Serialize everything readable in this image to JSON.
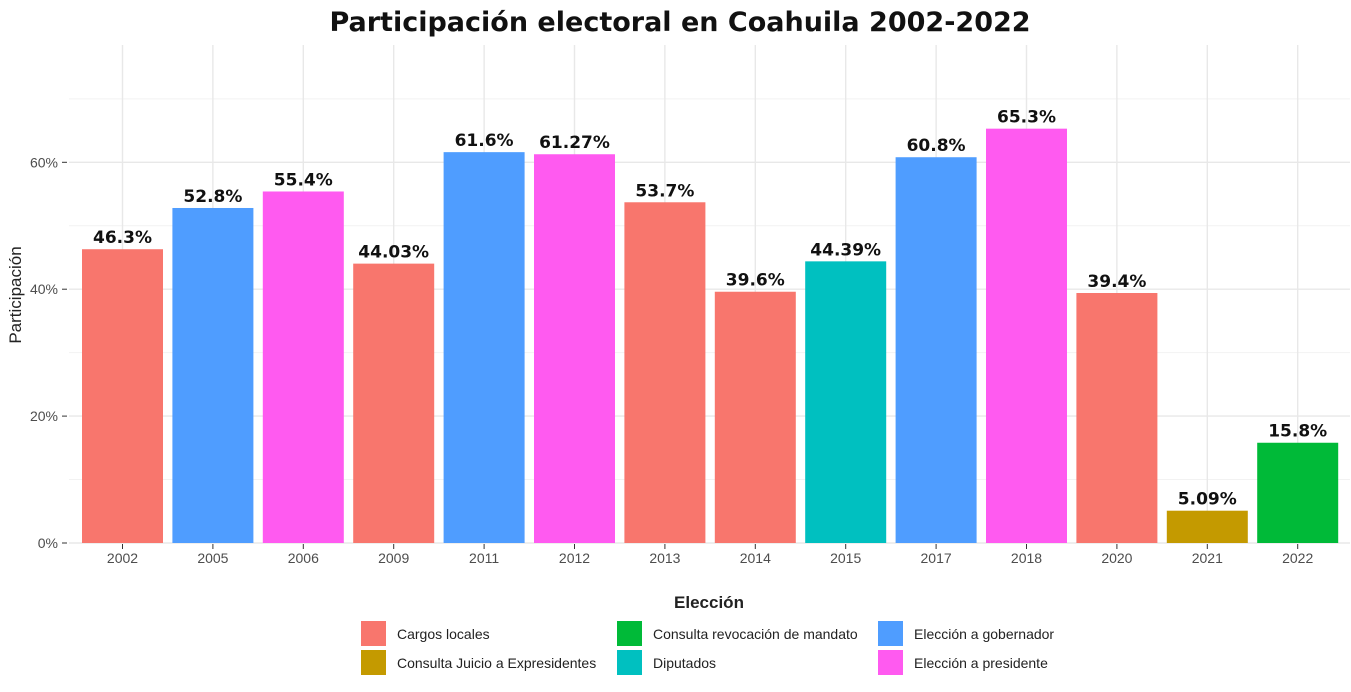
{
  "chart_data": {
    "type": "bar",
    "title": "Participación electoral en Coahuila 2002-2022",
    "xlabel": "",
    "ylabel": "Participación",
    "ylim": [
      0,
      72
    ],
    "y_ticks": [
      0,
      20,
      40,
      60
    ],
    "y_tick_labels": [
      "0%",
      "20%",
      "40%",
      "60%"
    ],
    "grid": true,
    "legend_position": "bottom",
    "legend_title": "Elección",
    "categories": [
      "2002",
      "2005",
      "2006",
      "2009",
      "2011",
      "2012",
      "2013",
      "2014",
      "2015",
      "2017",
      "2018",
      "2020",
      "2021",
      "2022"
    ],
    "values": [
      46.3,
      52.8,
      55.4,
      44.03,
      61.6,
      61.27,
      53.7,
      39.6,
      44.39,
      60.8,
      65.3,
      39.4,
      5.09,
      15.8
    ],
    "value_labels": [
      "46.3%",
      "52.8%",
      "55.4%",
      "44.03%",
      "61.6%",
      "61.27%",
      "53.7%",
      "39.6%",
      "44.39%",
      "60.8%",
      "65.3%",
      "39.4%",
      "5.09%",
      "15.8%"
    ],
    "groups": [
      "Cargos locales",
      "Elección a gobernador",
      "Elección a presidente",
      "Cargos locales",
      "Elección a gobernador",
      "Elección a presidente",
      "Cargos locales",
      "Cargos locales",
      "Diputados",
      "Elección a gobernador",
      "Elección a presidente",
      "Cargos locales",
      "Consulta Juicio a Expresidentes",
      "Consulta revocación de mandato"
    ],
    "legend": [
      {
        "name": "Cargos locales",
        "color": "#F8766D"
      },
      {
        "name": "Consulta Juicio a Expresidentes",
        "color": "#C49A00"
      },
      {
        "name": "Consulta revocación de mandato",
        "color": "#00BA38"
      },
      {
        "name": "Diputados",
        "color": "#00C0C0"
      },
      {
        "name": "Elección a gobernador",
        "color": "#4F9DFF"
      },
      {
        "name": "Elección a presidente",
        "color": "#FF5AF0"
      }
    ]
  }
}
